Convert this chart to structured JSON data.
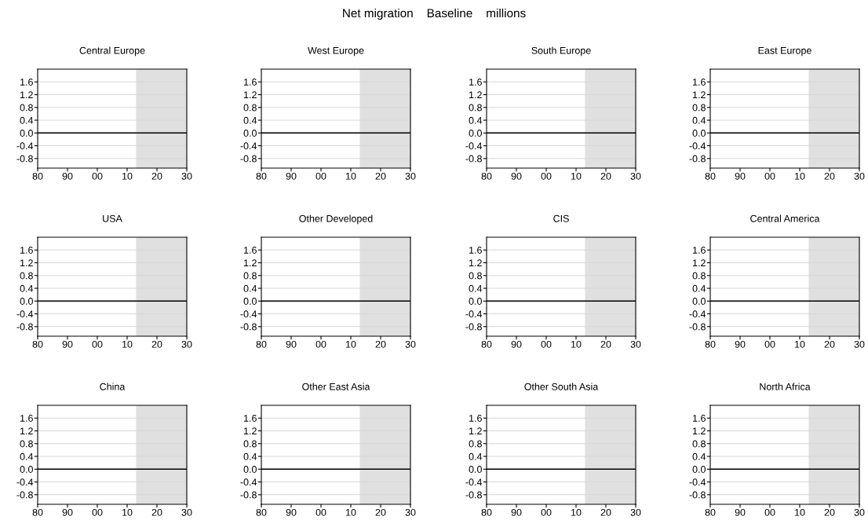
{
  "chart_data": [
    {
      "type": "line",
      "title": "Central Europe",
      "xlim": [
        1980,
        2030
      ],
      "ylim": [
        -1.1,
        2.0
      ],
      "xticks": [
        {
          "value": 1980,
          "label": "80"
        },
        {
          "value": 1990,
          "label": "90"
        },
        {
          "value": 2000,
          "label": "00"
        },
        {
          "value": 2010,
          "label": "10"
        },
        {
          "value": 2020,
          "label": "20"
        },
        {
          "value": 2030,
          "label": "30"
        }
      ],
      "yticks": [
        {
          "value": -0.8,
          "label": "-0.8"
        },
        {
          "value": -0.4,
          "label": "-0.4"
        },
        {
          "value": 0,
          "label": "0.0"
        },
        {
          "value": 0.4,
          "label": "0.4"
        },
        {
          "value": 0.8,
          "label": "0.8"
        },
        {
          "value": 1.2,
          "label": "1.2"
        },
        {
          "value": 1.6,
          "label": "1.6"
        }
      ],
      "grid": "y",
      "ref_lines": [
        {
          "axis": "y",
          "value": 0,
          "color": "#000000"
        }
      ],
      "bands": [
        {
          "axis": "x",
          "from": 2013,
          "to": 2030,
          "color": "#e0e0e0"
        }
      ]
    },
    {
      "type": "line",
      "title": "West Europe",
      "xlim": [
        1980,
        2030
      ],
      "ylim": [
        -1.1,
        2.0
      ],
      "xticks": [
        {
          "value": 1980,
          "label": "80"
        },
        {
          "value": 1990,
          "label": "90"
        },
        {
          "value": 2000,
          "label": "00"
        },
        {
          "value": 2010,
          "label": "10"
        },
        {
          "value": 2020,
          "label": "20"
        },
        {
          "value": 2030,
          "label": "30"
        }
      ],
      "yticks": [
        {
          "value": -0.8,
          "label": "-0.8"
        },
        {
          "value": -0.4,
          "label": "-0.4"
        },
        {
          "value": 0,
          "label": "0.0"
        },
        {
          "value": 0.4,
          "label": "0.4"
        },
        {
          "value": 0.8,
          "label": "0.8"
        },
        {
          "value": 1.2,
          "label": "1.2"
        },
        {
          "value": 1.6,
          "label": "1.6"
        }
      ],
      "grid": "y",
      "ref_lines": [
        {
          "axis": "y",
          "value": 0,
          "color": "#000000"
        }
      ],
      "bands": [
        {
          "axis": "x",
          "from": 2013,
          "to": 2030,
          "color": "#e0e0e0"
        }
      ]
    },
    {
      "type": "line",
      "title": "South Europe",
      "xlim": [
        1980,
        2030
      ],
      "ylim": [
        -1.1,
        2.0
      ],
      "xticks": [
        {
          "value": 1980,
          "label": "80"
        },
        {
          "value": 1990,
          "label": "90"
        },
        {
          "value": 2000,
          "label": "00"
        },
        {
          "value": 2010,
          "label": "10"
        },
        {
          "value": 2020,
          "label": "20"
        },
        {
          "value": 2030,
          "label": "30"
        }
      ],
      "yticks": [
        {
          "value": -0.8,
          "label": "-0.8"
        },
        {
          "value": -0.4,
          "label": "-0.4"
        },
        {
          "value": 0,
          "label": "0.0"
        },
        {
          "value": 0.4,
          "label": "0.4"
        },
        {
          "value": 0.8,
          "label": "0.8"
        },
        {
          "value": 1.2,
          "label": "1.2"
        },
        {
          "value": 1.6,
          "label": "1.6"
        }
      ],
      "grid": "y",
      "ref_lines": [
        {
          "axis": "y",
          "value": 0,
          "color": "#000000"
        }
      ],
      "bands": [
        {
          "axis": "x",
          "from": 2013,
          "to": 2030,
          "color": "#e0e0e0"
        }
      ]
    },
    {
      "type": "line",
      "title": "East Europe",
      "xlim": [
        1980,
        2030
      ],
      "ylim": [
        -1.1,
        2.0
      ],
      "xticks": [
        {
          "value": 1980,
          "label": "80"
        },
        {
          "value": 1990,
          "label": "90"
        },
        {
          "value": 2000,
          "label": "00"
        },
        {
          "value": 2010,
          "label": "10"
        },
        {
          "value": 2020,
          "label": "20"
        },
        {
          "value": 2030,
          "label": "30"
        }
      ],
      "yticks": [
        {
          "value": -0.8,
          "label": "-0.8"
        },
        {
          "value": -0.4,
          "label": "-0.4"
        },
        {
          "value": 0,
          "label": "0.0"
        },
        {
          "value": 0.4,
          "label": "0.4"
        },
        {
          "value": 0.8,
          "label": "0.8"
        },
        {
          "value": 1.2,
          "label": "1.2"
        },
        {
          "value": 1.6,
          "label": "1.6"
        }
      ],
      "grid": "y",
      "ref_lines": [
        {
          "axis": "y",
          "value": 0,
          "color": "#000000"
        }
      ],
      "bands": [
        {
          "axis": "x",
          "from": 2013,
          "to": 2030,
          "color": "#e0e0e0"
        }
      ]
    },
    {
      "type": "line",
      "title": "USA",
      "xlim": [
        1980,
        2030
      ],
      "ylim": [
        -1.1,
        2.0
      ],
      "xticks": [
        {
          "value": 1980,
          "label": "80"
        },
        {
          "value": 1990,
          "label": "90"
        },
        {
          "value": 2000,
          "label": "00"
        },
        {
          "value": 2010,
          "label": "10"
        },
        {
          "value": 2020,
          "label": "20"
        },
        {
          "value": 2030,
          "label": "30"
        }
      ],
      "yticks": [
        {
          "value": -0.8,
          "label": "-0.8"
        },
        {
          "value": -0.4,
          "label": "-0.4"
        },
        {
          "value": 0,
          "label": "0.0"
        },
        {
          "value": 0.4,
          "label": "0.4"
        },
        {
          "value": 0.8,
          "label": "0.8"
        },
        {
          "value": 1.2,
          "label": "1.2"
        },
        {
          "value": 1.6,
          "label": "1.6"
        }
      ],
      "grid": "y",
      "ref_lines": [
        {
          "axis": "y",
          "value": 0,
          "color": "#000000"
        }
      ],
      "bands": [
        {
          "axis": "x",
          "from": 2013,
          "to": 2030,
          "color": "#e0e0e0"
        }
      ]
    },
    {
      "type": "line",
      "title": "Other Developed",
      "xlim": [
        1980,
        2030
      ],
      "ylim": [
        -1.1,
        2.0
      ],
      "xticks": [
        {
          "value": 1980,
          "label": "80"
        },
        {
          "value": 1990,
          "label": "90"
        },
        {
          "value": 2000,
          "label": "00"
        },
        {
          "value": 2010,
          "label": "10"
        },
        {
          "value": 2020,
          "label": "20"
        },
        {
          "value": 2030,
          "label": "30"
        }
      ],
      "yticks": [
        {
          "value": -0.8,
          "label": "-0.8"
        },
        {
          "value": -0.4,
          "label": "-0.4"
        },
        {
          "value": 0,
          "label": "0.0"
        },
        {
          "value": 0.4,
          "label": "0.4"
        },
        {
          "value": 0.8,
          "label": "0.8"
        },
        {
          "value": 1.2,
          "label": "1.2"
        },
        {
          "value": 1.6,
          "label": "1.6"
        }
      ],
      "grid": "y",
      "ref_lines": [
        {
          "axis": "y",
          "value": 0,
          "color": "#000000"
        }
      ],
      "bands": [
        {
          "axis": "x",
          "from": 2013,
          "to": 2030,
          "color": "#e0e0e0"
        }
      ]
    },
    {
      "type": "line",
      "title": "CIS",
      "xlim": [
        1980,
        2030
      ],
      "ylim": [
        -1.1,
        2.0
      ],
      "xticks": [
        {
          "value": 1980,
          "label": "80"
        },
        {
          "value": 1990,
          "label": "90"
        },
        {
          "value": 2000,
          "label": "00"
        },
        {
          "value": 2010,
          "label": "10"
        },
        {
          "value": 2020,
          "label": "20"
        },
        {
          "value": 2030,
          "label": "30"
        }
      ],
      "yticks": [
        {
          "value": -0.8,
          "label": "-0.8"
        },
        {
          "value": -0.4,
          "label": "-0.4"
        },
        {
          "value": 0,
          "label": "0.0"
        },
        {
          "value": 0.4,
          "label": "0.4"
        },
        {
          "value": 0.8,
          "label": "0.8"
        },
        {
          "value": 1.2,
          "label": "1.2"
        },
        {
          "value": 1.6,
          "label": "1.6"
        }
      ],
      "grid": "y",
      "ref_lines": [
        {
          "axis": "y",
          "value": 0,
          "color": "#000000"
        }
      ],
      "bands": [
        {
          "axis": "x",
          "from": 2013,
          "to": 2030,
          "color": "#e0e0e0"
        }
      ]
    },
    {
      "type": "line",
      "title": "Central America",
      "xlim": [
        1980,
        2030
      ],
      "ylim": [
        -1.1,
        2.0
      ],
      "xticks": [
        {
          "value": 1980,
          "label": "80"
        },
        {
          "value": 1990,
          "label": "90"
        },
        {
          "value": 2000,
          "label": "00"
        },
        {
          "value": 2010,
          "label": "10"
        },
        {
          "value": 2020,
          "label": "20"
        },
        {
          "value": 2030,
          "label": "30"
        }
      ],
      "yticks": [
        {
          "value": -0.8,
          "label": "-0.8"
        },
        {
          "value": -0.4,
          "label": "-0.4"
        },
        {
          "value": 0,
          "label": "0.0"
        },
        {
          "value": 0.4,
          "label": "0.4"
        },
        {
          "value": 0.8,
          "label": "0.8"
        },
        {
          "value": 1.2,
          "label": "1.2"
        },
        {
          "value": 1.6,
          "label": "1.6"
        }
      ],
      "grid": "y",
      "ref_lines": [
        {
          "axis": "y",
          "value": 0,
          "color": "#000000"
        }
      ],
      "bands": [
        {
          "axis": "x",
          "from": 2013,
          "to": 2030,
          "color": "#e0e0e0"
        }
      ]
    },
    {
      "type": "line",
      "title": "China",
      "xlim": [
        1980,
        2030
      ],
      "ylim": [
        -1.1,
        2.0
      ],
      "xticks": [
        {
          "value": 1980,
          "label": "80"
        },
        {
          "value": 1990,
          "label": "90"
        },
        {
          "value": 2000,
          "label": "00"
        },
        {
          "value": 2010,
          "label": "10"
        },
        {
          "value": 2020,
          "label": "20"
        },
        {
          "value": 2030,
          "label": "30"
        }
      ],
      "yticks": [
        {
          "value": -0.8,
          "label": "-0.8"
        },
        {
          "value": -0.4,
          "label": "-0.4"
        },
        {
          "value": 0,
          "label": "0.0"
        },
        {
          "value": 0.4,
          "label": "0.4"
        },
        {
          "value": 0.8,
          "label": "0.8"
        },
        {
          "value": 1.2,
          "label": "1.2"
        },
        {
          "value": 1.6,
          "label": "1.6"
        }
      ],
      "grid": "y",
      "ref_lines": [
        {
          "axis": "y",
          "value": 0,
          "color": "#000000"
        }
      ],
      "bands": [
        {
          "axis": "x",
          "from": 2013,
          "to": 2030,
          "color": "#e0e0e0"
        }
      ]
    },
    {
      "type": "line",
      "title": "Other East Asia",
      "xlim": [
        1980,
        2030
      ],
      "ylim": [
        -1.1,
        2.0
      ],
      "xticks": [
        {
          "value": 1980,
          "label": "80"
        },
        {
          "value": 1990,
          "label": "90"
        },
        {
          "value": 2000,
          "label": "00"
        },
        {
          "value": 2010,
          "label": "10"
        },
        {
          "value": 2020,
          "label": "20"
        },
        {
          "value": 2030,
          "label": "30"
        }
      ],
      "yticks": [
        {
          "value": -0.8,
          "label": "-0.8"
        },
        {
          "value": -0.4,
          "label": "-0.4"
        },
        {
          "value": 0,
          "label": "0.0"
        },
        {
          "value": 0.4,
          "label": "0.4"
        },
        {
          "value": 0.8,
          "label": "0.8"
        },
        {
          "value": 1.2,
          "label": "1.2"
        },
        {
          "value": 1.6,
          "label": "1.6"
        }
      ],
      "grid": "y",
      "ref_lines": [
        {
          "axis": "y",
          "value": 0,
          "color": "#000000"
        }
      ],
      "bands": [
        {
          "axis": "x",
          "from": 2013,
          "to": 2030,
          "color": "#e0e0e0"
        }
      ]
    },
    {
      "type": "line",
      "title": "Other South Asia",
      "xlim": [
        1980,
        2030
      ],
      "ylim": [
        -1.1,
        2.0
      ],
      "xticks": [
        {
          "value": 1980,
          "label": "80"
        },
        {
          "value": 1990,
          "label": "90"
        },
        {
          "value": 2000,
          "label": "00"
        },
        {
          "value": 2010,
          "label": "10"
        },
        {
          "value": 2020,
          "label": "20"
        },
        {
          "value": 2030,
          "label": "30"
        }
      ],
      "yticks": [
        {
          "value": -0.8,
          "label": "-0.8"
        },
        {
          "value": -0.4,
          "label": "-0.4"
        },
        {
          "value": 0,
          "label": "0.0"
        },
        {
          "value": 0.4,
          "label": "0.4"
        },
        {
          "value": 0.8,
          "label": "0.8"
        },
        {
          "value": 1.2,
          "label": "1.2"
        },
        {
          "value": 1.6,
          "label": "1.6"
        }
      ],
      "grid": "y",
      "ref_lines": [
        {
          "axis": "y",
          "value": 0,
          "color": "#000000"
        }
      ],
      "bands": [
        {
          "axis": "x",
          "from": 2013,
          "to": 2030,
          "color": "#e0e0e0"
        }
      ]
    },
    {
      "type": "line",
      "title": "North Africa",
      "xlim": [
        1980,
        2030
      ],
      "ylim": [
        -1.1,
        2.0
      ],
      "xticks": [
        {
          "value": 1980,
          "label": "80"
        },
        {
          "value": 1990,
          "label": "90"
        },
        {
          "value": 2000,
          "label": "00"
        },
        {
          "value": 2010,
          "label": "10"
        },
        {
          "value": 2020,
          "label": "20"
        },
        {
          "value": 2030,
          "label": "30"
        }
      ],
      "yticks": [
        {
          "value": -0.8,
          "label": "-0.8"
        },
        {
          "value": -0.4,
          "label": "-0.4"
        },
        {
          "value": 0,
          "label": "0.0"
        },
        {
          "value": 0.4,
          "label": "0.4"
        },
        {
          "value": 0.8,
          "label": "0.8"
        },
        {
          "value": 1.2,
          "label": "1.2"
        },
        {
          "value": 1.6,
          "label": "1.6"
        }
      ],
      "grid": "y",
      "ref_lines": [
        {
          "axis": "y",
          "value": 0,
          "color": "#000000"
        }
      ],
      "bands": [
        {
          "axis": "x",
          "from": 2013,
          "to": 2030,
          "color": "#e0e0e0"
        }
      ]
    },
    {
      "type": "other",
      "title": "Net migration    Baseline    millions"
    }
  ]
}
